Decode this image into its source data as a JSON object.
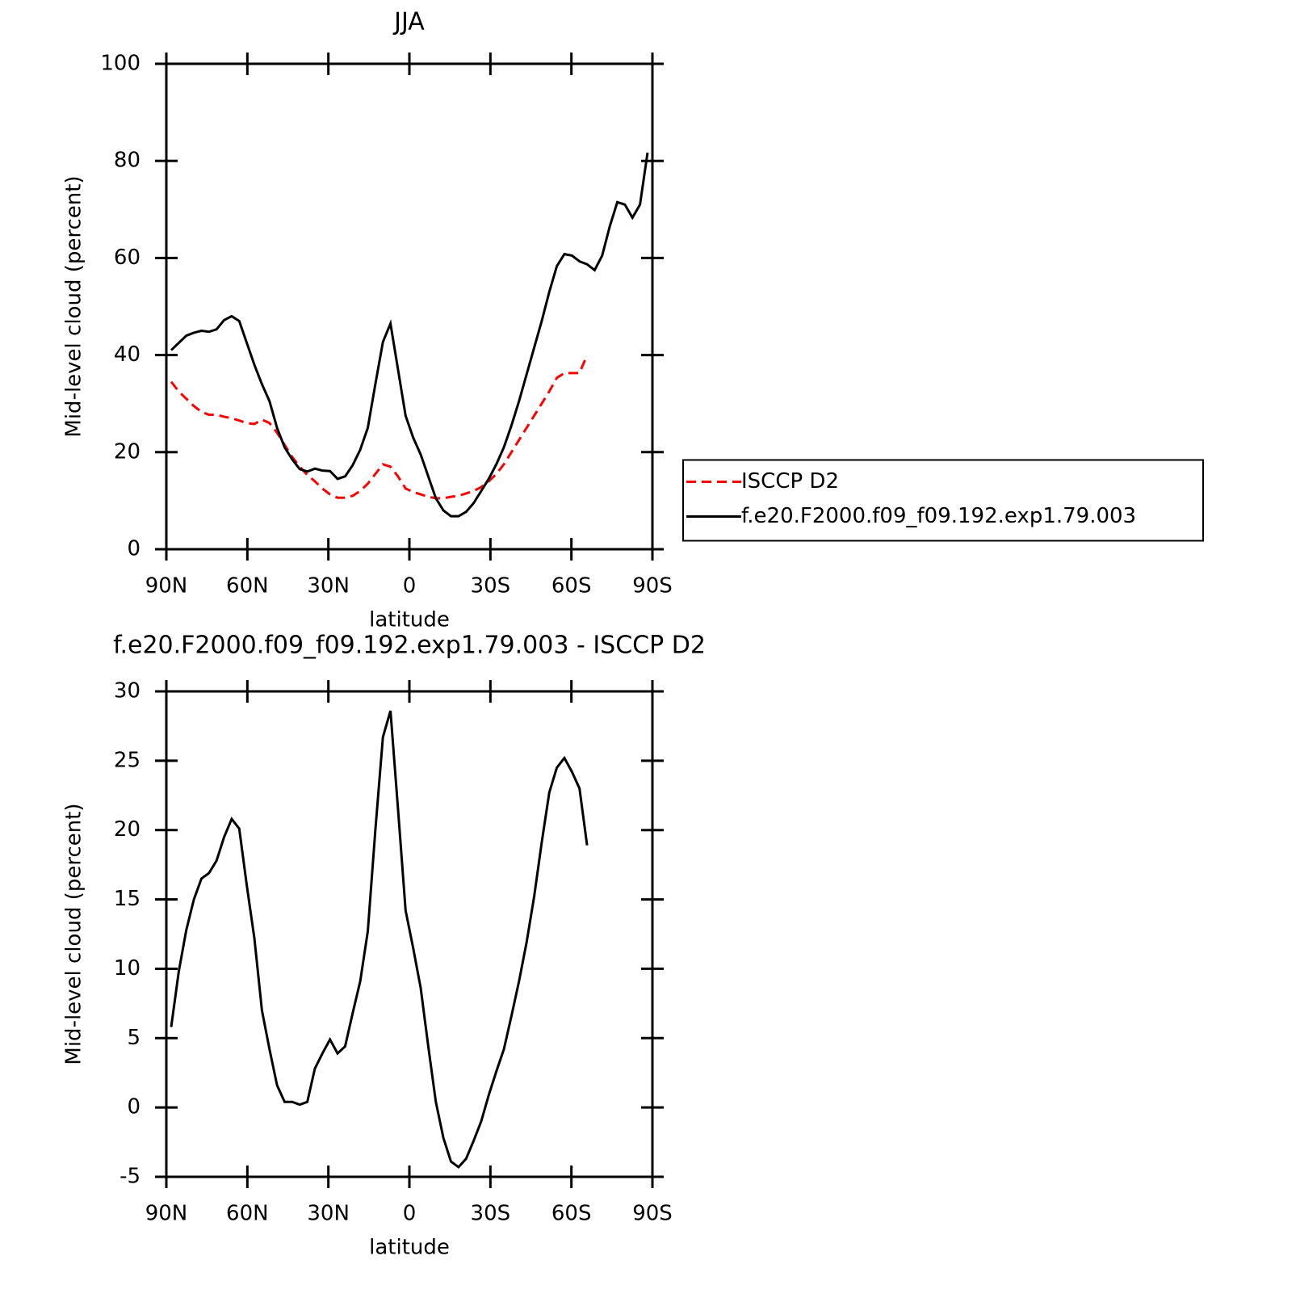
{
  "chart_data": [
    {
      "type": "line",
      "title": "JJA",
      "xlabel": "latitude",
      "ylabel": "Mid-level cloud (percent)",
      "x": [
        88.2,
        85.4,
        82.6,
        79.8,
        77,
        74.2,
        71.4,
        68.6,
        65.8,
        63,
        60.2,
        57.4,
        54.6,
        51.8,
        49,
        46.2,
        43.4,
        40.6,
        37.8,
        35,
        32.2,
        29.4,
        26.6,
        23.8,
        21,
        18.2,
        15.4,
        12.6,
        9.8,
        7,
        4.2,
        1.4,
        -1.4,
        -4.2,
        -7,
        -9.8,
        -12.6,
        -15.4,
        -18.2,
        -21,
        -23.8,
        -26.6,
        -29.4,
        -32.2,
        -35,
        -37.8,
        -40.6,
        -43.4,
        -46.2,
        -49,
        -51.8,
        -54.6,
        -57.4,
        -60.2,
        -63,
        -65.8,
        -68.6,
        -71.4,
        -74.2,
        -77,
        -79.8,
        -82.6,
        -85.4,
        -88.2
      ],
      "series": [
        {
          "name": "ISCCP D2",
          "color": "#ff0000",
          "dashed": true,
          "values": [
            34.5,
            32.5,
            31,
            29.5,
            28.3,
            27.7,
            27.7,
            27.3,
            27,
            26.5,
            26,
            25.8,
            26.7,
            26,
            24,
            21.5,
            19,
            17,
            15.3,
            14,
            12.5,
            11.3,
            10.6,
            10.6,
            11,
            12,
            13.5,
            15.5,
            17.5,
            17,
            15,
            12.5,
            11.8,
            11.3,
            10.8,
            10.5,
            10.5,
            10.8,
            11,
            11.5,
            12,
            12.8,
            14,
            15.5,
            17.5,
            20,
            22.5,
            25,
            27.5,
            30,
            32.5,
            35.3,
            36.3,
            36.3,
            36.3,
            40,
            null,
            null,
            null,
            null,
            null,
            null,
            null,
            null
          ]
        },
        {
          "name": "f.e20.F2000.f09_f09.192.exp1.79.003",
          "color": "#000000",
          "dashed": false,
          "values": [
            41,
            42.5,
            44,
            44.6,
            45,
            44.8,
            45.3,
            47.2,
            48,
            47,
            42.5,
            38,
            34,
            30.5,
            25,
            21,
            18.5,
            16.5,
            16,
            16.6,
            16.2,
            16.1,
            14.5,
            15,
            17.3,
            20.5,
            25,
            34,
            42.7,
            46.5,
            37,
            27.5,
            23,
            19.5,
            15,
            10.5,
            8,
            6.8,
            6.8,
            7.7,
            9.5,
            12,
            14.5,
            17.5,
            21,
            25.5,
            30.5,
            36,
            41.5,
            47,
            53,
            58.3,
            60.8,
            60.5,
            59.3,
            58.7,
            57.5,
            60.5,
            66.5,
            71.5,
            71,
            68.3,
            71,
            81.7
          ]
        }
      ],
      "xlim": [
        90,
        -90
      ],
      "xticks": [
        {
          "value": 90,
          "label": "90N"
        },
        {
          "value": 60,
          "label": "60N"
        },
        {
          "value": 30,
          "label": "30N"
        },
        0,
        {
          "value": -30,
          "label": "30S"
        },
        {
          "value": -60,
          "label": "60S"
        },
        {
          "value": -90,
          "label": "90S"
        }
      ],
      "ylim": [
        0,
        100
      ],
      "yticks": [
        0,
        20,
        40,
        60,
        80,
        100
      ],
      "legend": "right"
    },
    {
      "type": "line",
      "title": "f.e20.F2000.f09_f09.192.exp1.79.003 - ISCCP D2",
      "xlabel": "latitude",
      "ylabel": "Mid-level cloud (percent)",
      "x": [
        88.2,
        85.4,
        82.6,
        79.8,
        77,
        74.2,
        71.4,
        68.6,
        65.8,
        63,
        60.2,
        57.4,
        54.6,
        51.8,
        49,
        46.2,
        43.4,
        40.6,
        37.8,
        35,
        32.2,
        29.4,
        26.6,
        23.8,
        21,
        18.2,
        15.4,
        12.6,
        9.8,
        7,
        4.2,
        1.4,
        -1.4,
        -4.2,
        -7,
        -9.8,
        -12.6,
        -15.4,
        -18.2,
        -21,
        -23.8,
        -26.6,
        -29.4,
        -32.2,
        -35,
        -37.8,
        -40.6,
        -43.4,
        -46.2,
        -49,
        -51.8,
        -54.6,
        -57.4,
        -60.2,
        -63,
        -65.8,
        -68.6,
        -71.4,
        -74.2,
        -77,
        -79.8,
        -82.6,
        -85.4,
        -88.2
      ],
      "series": [
        {
          "color": "#000000",
          "dashed": false,
          "values": [
            5.8,
            9.8,
            12.8,
            15,
            16.5,
            16.9,
            17.8,
            19.5,
            20.8,
            20.1,
            16,
            12.2,
            7,
            4.2,
            1.6,
            0.4,
            0.4,
            0.2,
            0.4,
            2.8,
            3.9,
            4.9,
            3.9,
            4.4,
            6.8,
            9.1,
            12.7,
            20,
            26.7,
            28.6,
            21.5,
            14.2,
            11.5,
            8.6,
            4.4,
            0.4,
            -2.2,
            -3.9,
            -4.3,
            -3.7,
            -2.4,
            -1,
            0.9,
            2.6,
            4.2,
            6.6,
            9.1,
            11.9,
            15.2,
            19.1,
            22.7,
            24.5,
            25.2,
            24.2,
            23,
            18.9,
            null,
            null,
            null,
            null,
            null,
            null,
            null,
            null
          ]
        }
      ],
      "xlim": [
        90,
        -90
      ],
      "xticks": [
        {
          "value": 90,
          "label": "90N"
        },
        {
          "value": 60,
          "label": "60N"
        },
        {
          "value": 30,
          "label": "30N"
        },
        0,
        {
          "value": -30,
          "label": "30S"
        },
        {
          "value": -60,
          "label": "60S"
        },
        {
          "value": -90,
          "label": "90S"
        }
      ],
      "ylim": [
        -5,
        30
      ],
      "yticks": [
        -5,
        0,
        5,
        10,
        15,
        20,
        25,
        30
      ]
    }
  ]
}
